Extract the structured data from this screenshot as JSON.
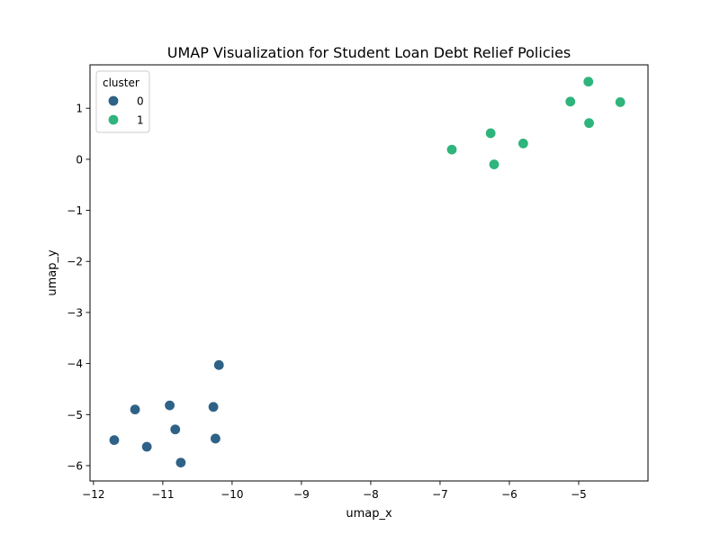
{
  "chart_data": {
    "type": "scatter",
    "title": "UMAP Visualization for Student Loan Debt Relief Policies",
    "xlabel": "umap_x",
    "ylabel": "umap_y",
    "xlim": [
      -12.05,
      -4.0
    ],
    "ylim": [
      -6.3,
      1.85
    ],
    "xticks": [
      -12,
      -11,
      -10,
      -9,
      -8,
      -7,
      -6,
      -5
    ],
    "xtick_labels": [
      "−12",
      "−11",
      "−10",
      "−9",
      "−8",
      "−7",
      "−6",
      "−5"
    ],
    "yticks": [
      1,
      0,
      -1,
      -2,
      -3,
      -4,
      -5,
      -6
    ],
    "ytick_labels": [
      "1",
      "0",
      "−1",
      "−2",
      "−3",
      "−4",
      "−5",
      "−6"
    ],
    "grid": false,
    "legend": {
      "title": "cluster",
      "placement": "top-left"
    },
    "series": [
      {
        "name": "0",
        "color": "#2e6287",
        "points": [
          {
            "x": -11.7,
            "y": -5.5
          },
          {
            "x": -11.4,
            "y": -4.9
          },
          {
            "x": -11.23,
            "y": -5.63
          },
          {
            "x": -10.9,
            "y": -4.82
          },
          {
            "x": -10.82,
            "y": -5.29
          },
          {
            "x": -10.74,
            "y": -5.94
          },
          {
            "x": -10.27,
            "y": -4.85
          },
          {
            "x": -10.24,
            "y": -5.47
          },
          {
            "x": -10.19,
            "y": -4.03
          }
        ]
      },
      {
        "name": "1",
        "color": "#2fb47c",
        "points": [
          {
            "x": -6.83,
            "y": 0.19
          },
          {
            "x": -6.27,
            "y": 0.51
          },
          {
            "x": -6.22,
            "y": -0.1
          },
          {
            "x": -5.8,
            "y": 0.31
          },
          {
            "x": -5.12,
            "y": 1.13
          },
          {
            "x": -4.86,
            "y": 1.52
          },
          {
            "x": -4.85,
            "y": 0.71
          },
          {
            "x": -4.4,
            "y": 1.12
          }
        ]
      }
    ]
  }
}
